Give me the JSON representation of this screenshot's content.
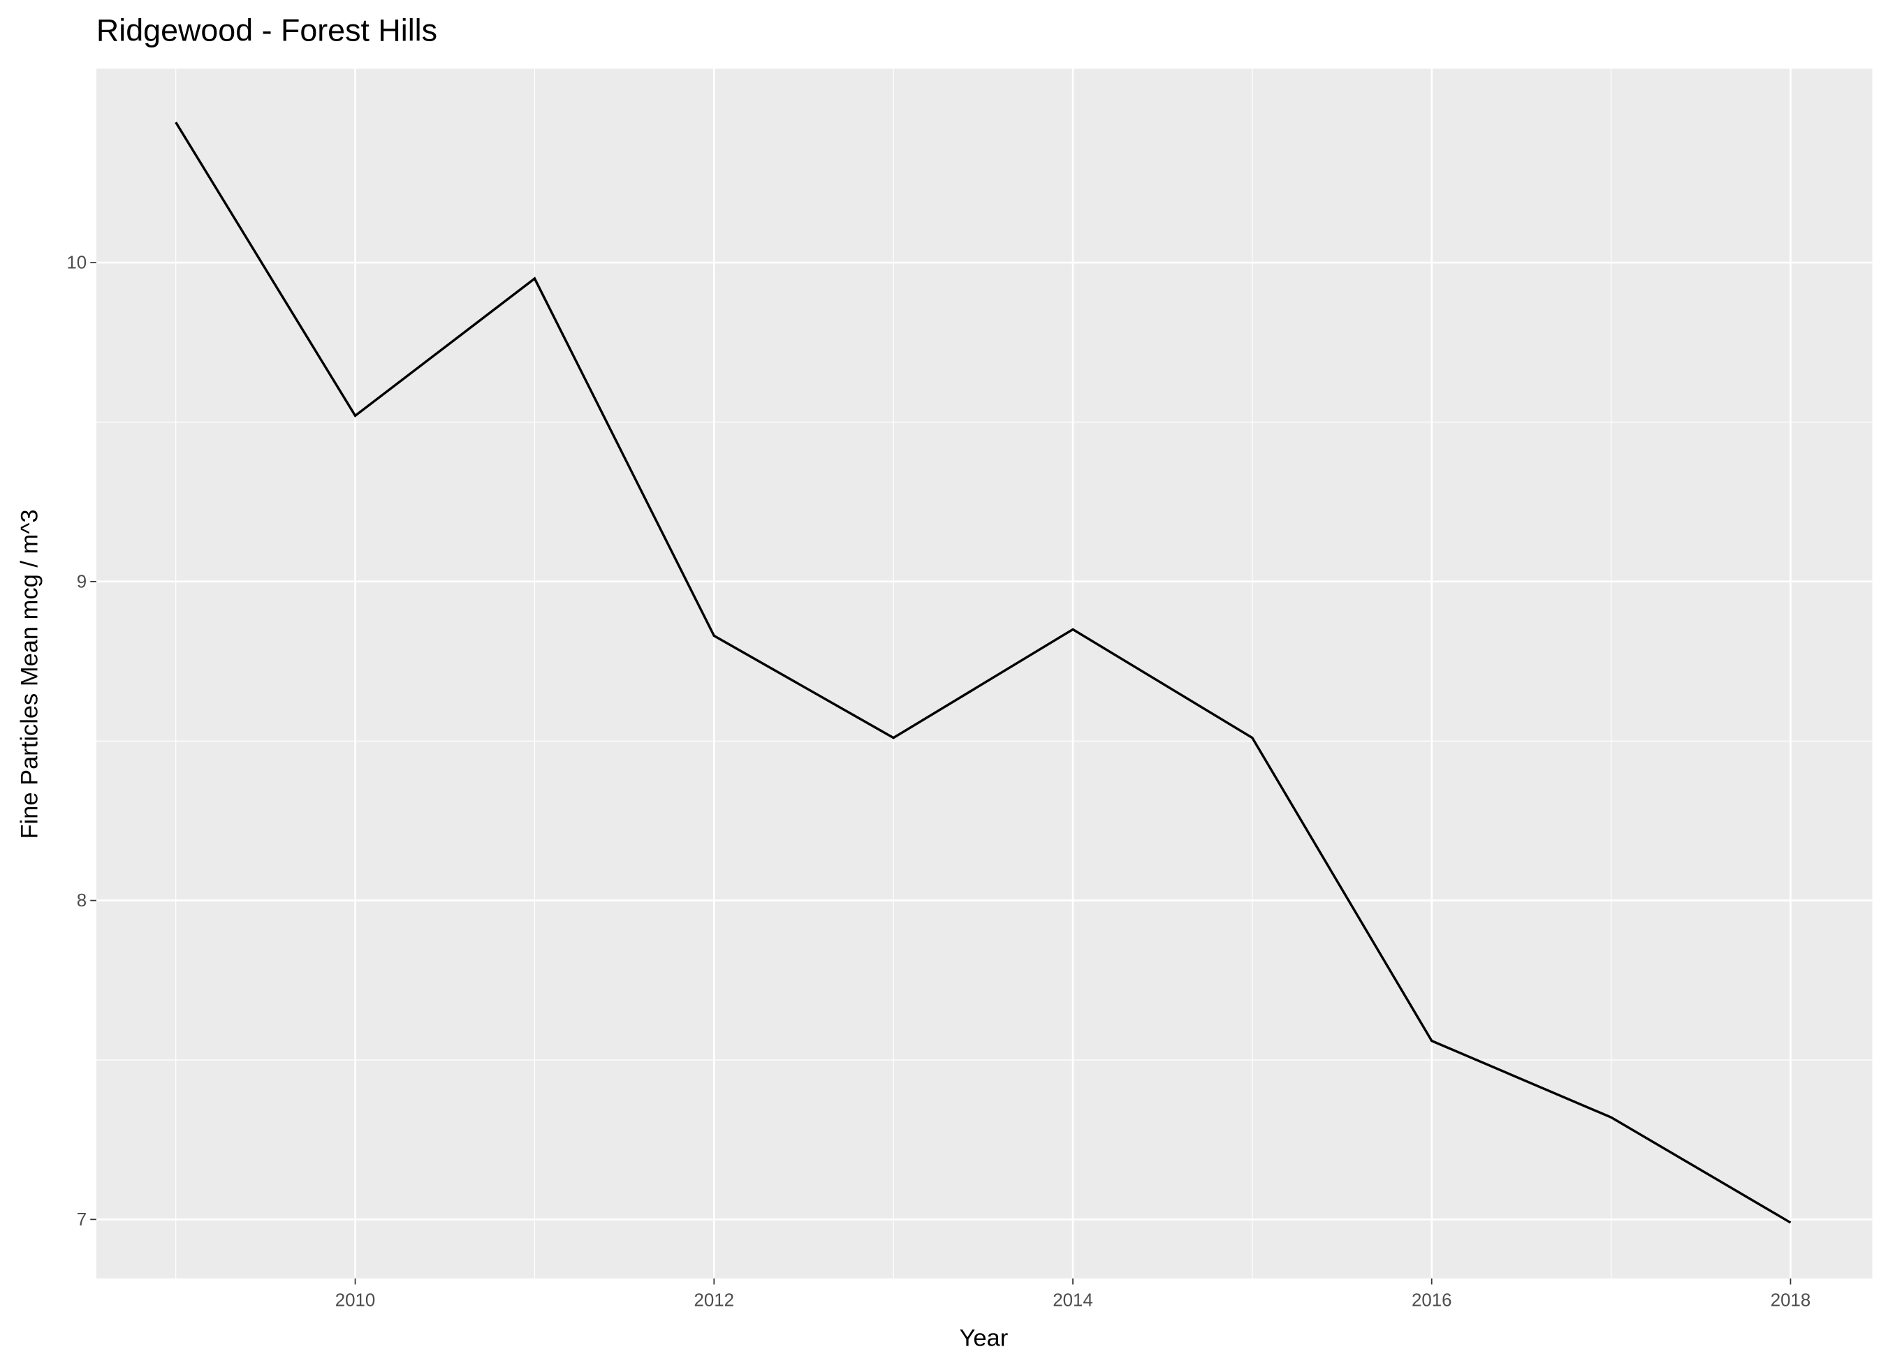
{
  "chart_data": {
    "type": "line",
    "title": "Ridgewood - Forest Hills",
    "x_label": "Year",
    "y_label": "Fine Particles Mean mcg / m^3",
    "x": [
      2009,
      2010,
      2011,
      2012,
      2013,
      2014,
      2015,
      2016,
      2017,
      2018
    ],
    "series": [
      {
        "color": "#000000",
        "values": [
          10.44,
          9.52,
          9.95,
          8.83,
          8.51,
          8.85,
          8.51,
          7.56,
          7.32,
          6.99
        ]
      }
    ],
    "xlim": [
      2008.557,
      2018.456
    ],
    "ylim": [
      6.815,
      10.608
    ],
    "xticks": [
      2010,
      2012,
      2014,
      2016,
      2018
    ],
    "yticks": [
      7,
      8,
      9,
      10
    ],
    "grid": true
  }
}
